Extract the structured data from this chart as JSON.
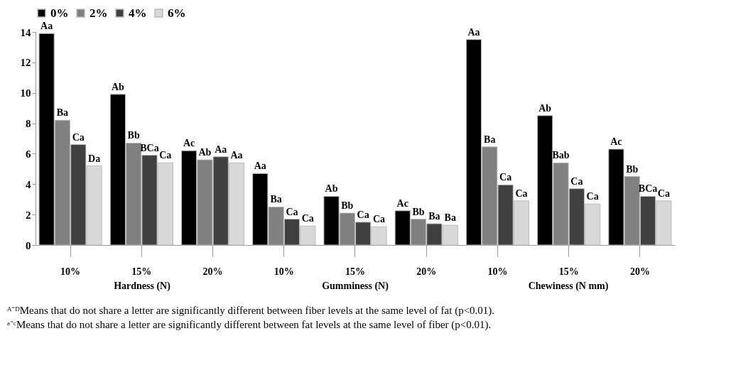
{
  "chart_data": {
    "type": "bar",
    "categories": [
      "10%",
      "15%",
      "20%",
      "10%",
      "15%",
      "20%",
      "10%",
      "15%",
      "20%"
    ],
    "series": [
      {
        "name": "0%",
        "color": "#000000",
        "values": [
          13.9,
          9.9,
          6.2,
          4.7,
          3.2,
          2.25,
          13.5,
          8.5,
          6.3
        ],
        "value_labels": [
          "Aa",
          "Ab",
          "Ac",
          "Aa",
          "Ab",
          "Ac",
          "Aa",
          "Ab",
          "Ac"
        ]
      },
      {
        "name": "2%",
        "color": "#808080",
        "values": [
          8.2,
          6.7,
          5.6,
          2.5,
          2.1,
          1.7,
          6.45,
          5.4,
          4.5
        ],
        "value_labels": [
          "Ba",
          "Bb",
          "Ab",
          "Ba",
          "Bb",
          "Bb",
          "Ba",
          "Bab",
          "Bb"
        ]
      },
      {
        "name": "4%",
        "color": "#404040",
        "values": [
          6.6,
          5.9,
          5.8,
          1.7,
          1.5,
          1.4,
          3.95,
          3.7,
          3.2
        ],
        "value_labels": [
          "Ca",
          "BCa",
          "Aa",
          "Ca",
          "Ca",
          "Ba",
          "Ca",
          "Ca",
          "BCa"
        ]
      },
      {
        "name": "6%",
        "color": "#d9d9d9",
        "values": [
          5.2,
          5.4,
          5.4,
          1.25,
          1.2,
          1.3,
          2.9,
          2.7,
          2.9
        ],
        "value_labels": [
          "Da",
          "Ca",
          "Aa",
          "Ca",
          "Ca",
          "Ba",
          "Ca",
          "Ca",
          "Ca"
        ]
      }
    ],
    "ylim": [
      0,
      14
    ],
    "yticks": [
      0,
      2,
      4,
      6,
      8,
      10,
      12,
      14
    ],
    "grid": false,
    "legend": "top",
    "annotations": [
      "Hardness (N)",
      "Gumminess (N)",
      "Chewiness (N mm)",
      "ᴬ⁻ᴰMeans that do not share a letter are significantly different between fiber levels at the same level of fat (p<0.01).",
      "ᵃ⁻ᶜMeans that do not share a letter are significantly different between fat levels at the same level of fiber (p<0.01)."
    ]
  }
}
